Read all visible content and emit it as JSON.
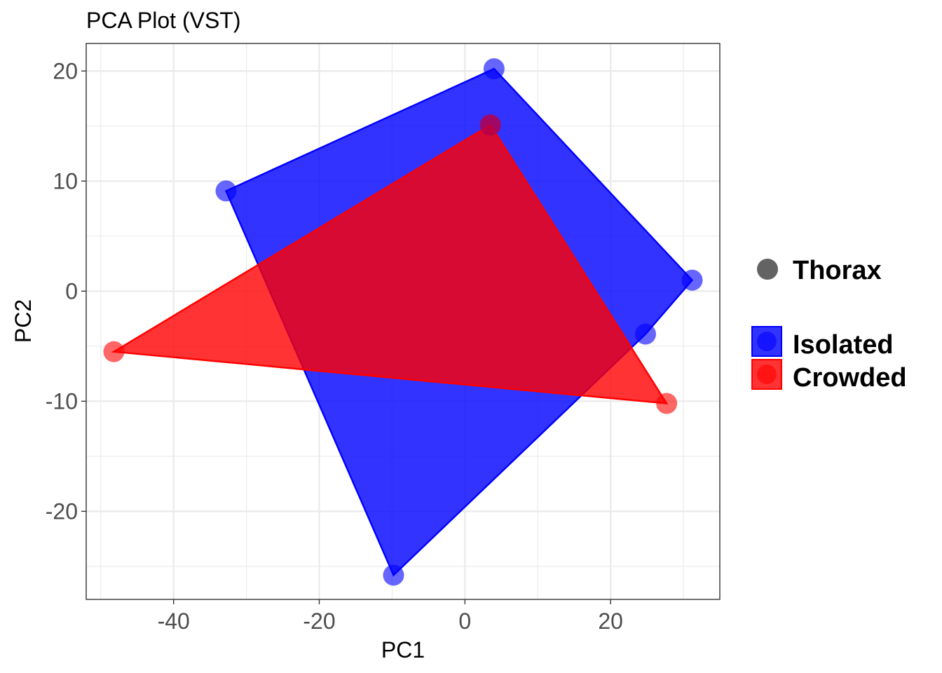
{
  "chart_data": {
    "type": "scatter",
    "title": "PCA Plot (VST)",
    "xlabel": "PC1",
    "ylabel": "PC2",
    "xlim": [
      -52,
      35
    ],
    "ylim": [
      -28,
      22.5
    ],
    "x_ticks": [
      -40,
      -20,
      0,
      20
    ],
    "x_tick_labels": [
      "-40",
      "-20",
      "0",
      "20"
    ],
    "y_ticks": [
      -20,
      -10,
      0,
      10,
      20
    ],
    "y_tick_labels": [
      "-20",
      "-10",
      "0",
      "10",
      "20"
    ],
    "x_minor_ticks": [
      -50,
      -30,
      -10,
      10,
      30
    ],
    "y_minor_ticks": [
      -25,
      -15,
      -5,
      5,
      15
    ],
    "grid": true,
    "legend_position": "right",
    "shape_legend": {
      "label": "Thorax",
      "color": "#636363"
    },
    "series": [
      {
        "name": "Isolated",
        "color": "#0000ff",
        "hull": true,
        "points": [
          {
            "x": 4.0,
            "y": 20.2
          },
          {
            "x": 3.5,
            "y": 15.1
          },
          {
            "x": -32.8,
            "y": 9.1
          },
          {
            "x": 31.2,
            "y": 1.0
          },
          {
            "x": 24.8,
            "y": -3.9
          },
          {
            "x": -9.8,
            "y": -25.8
          }
        ]
      },
      {
        "name": "Crowded",
        "color": "#ff0000",
        "hull": true,
        "points": [
          {
            "x": 3.5,
            "y": 15.1
          },
          {
            "x": -48.2,
            "y": -5.5
          },
          {
            "x": 27.7,
            "y": -10.2
          }
        ]
      }
    ]
  }
}
